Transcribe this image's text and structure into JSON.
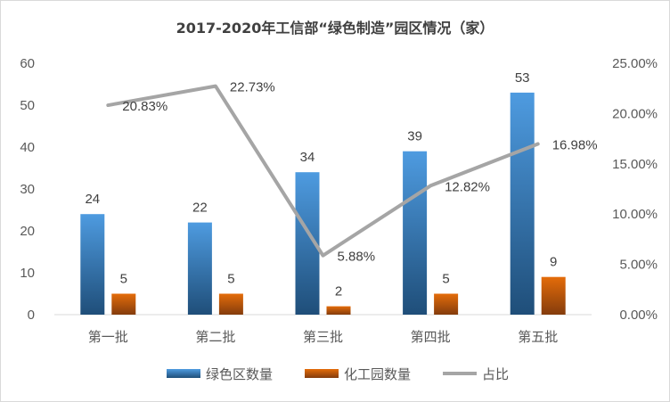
{
  "chart_data": {
    "type": "bar",
    "title": "2017-2020年工信部“绿色制造”园区情况（家）",
    "categories": [
      "第一批",
      "第二批",
      "第三批",
      "第四批",
      "第五批"
    ],
    "series": [
      {
        "name": "绿色区数量",
        "type": "bar",
        "axis": "left",
        "values": [
          24,
          22,
          34,
          39,
          53
        ],
        "labels": [
          "24",
          "22",
          "34",
          "39",
          "53"
        ],
        "color": "#2e75b6"
      },
      {
        "name": "化工园数量",
        "type": "bar",
        "axis": "left",
        "values": [
          5,
          5,
          2,
          5,
          9
        ],
        "labels": [
          "5",
          "5",
          "2",
          "5",
          "9"
        ],
        "color": "#c55a11"
      },
      {
        "name": "占比",
        "type": "line",
        "axis": "right",
        "values": [
          20.83,
          22.73,
          5.88,
          12.82,
          16.98
        ],
        "labels": [
          "20.83%",
          "22.73%",
          "5.88%",
          "12.82%",
          "16.98%"
        ],
        "color": "#a5a5a5"
      }
    ],
    "y_left": {
      "range": [
        0,
        60
      ],
      "ticks": [
        "0",
        "10",
        "20",
        "30",
        "40",
        "50",
        "60"
      ]
    },
    "y_right": {
      "range": [
        0,
        25
      ],
      "ticks": [
        "0.00%",
        "5.00%",
        "10.00%",
        "15.00%",
        "20.00%",
        "25.00%"
      ]
    },
    "grid": false,
    "legend": "bottom"
  }
}
